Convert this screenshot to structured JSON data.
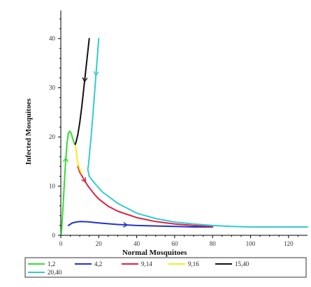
{
  "chart_data": {
    "type": "line",
    "xlabel": "Normal Mosquitoes",
    "ylabel": "Infected Mosquitoes",
    "xlim": [
      0,
      130
    ],
    "ylim": [
      0,
      45
    ],
    "x_ticks": [
      0,
      20,
      40,
      60,
      80,
      100,
      120
    ],
    "y_ticks": [
      0,
      10,
      20,
      30,
      40
    ],
    "grid": false,
    "legend_position": "bottom",
    "series": [
      {
        "name": "1,2",
        "color": "#33dd33",
        "x": [
          0.3,
          1.2,
          2.2,
          3.2,
          4.0,
          4.8,
          5.6,
          6.3,
          7.0,
          7.6
        ],
        "y": [
          0.3,
          6.0,
          13.0,
          18.5,
          20.8,
          21.2,
          20.6,
          19.6,
          18.8,
          18.5
        ]
      },
      {
        "name": "4,2",
        "color": "#2233cc",
        "x": [
          4,
          6,
          8,
          10,
          14,
          18,
          22,
          30,
          40,
          50,
          60,
          70,
          80
        ],
        "y": [
          2.0,
          2.5,
          2.7,
          2.8,
          2.75,
          2.6,
          2.45,
          2.2,
          2.0,
          1.9,
          1.8,
          1.7,
          1.7
        ]
      },
      {
        "name": "9,14",
        "color": "#dd2244",
        "x": [
          9.0,
          10,
          12,
          14,
          16,
          18,
          20,
          25,
          30,
          40,
          50,
          60,
          70,
          80
        ],
        "y": [
          14.0,
          12.8,
          11.5,
          10.2,
          9.2,
          8.2,
          7.4,
          5.9,
          4.9,
          3.6,
          2.8,
          2.3,
          2.0,
          1.8
        ]
      },
      {
        "name": "9,16",
        "color": "#eeee22",
        "x": [
          7.6,
          8.0,
          8.5,
          9.0,
          9.5,
          10.0,
          11.0
        ],
        "y": [
          18.5,
          17.5,
          16.0,
          14.8,
          14.0,
          13.4,
          12.5
        ]
      },
      {
        "name": "15,40",
        "color": "#111111",
        "x": [
          15.0,
          14.0,
          13.0,
          12.0,
          11.0,
          10.0,
          9.0,
          8.0,
          7.6
        ],
        "y": [
          40.0,
          36.5,
          33.0,
          29.5,
          26.0,
          23.0,
          20.5,
          18.9,
          18.5
        ]
      },
      {
        "name": "20,40",
        "color": "#33cccc",
        "x": [
          20.0,
          19.0,
          18.0,
          17.0,
          16.0,
          15.0,
          14.5,
          14.2,
          15,
          18,
          22,
          30,
          40,
          50,
          60,
          70,
          80,
          90,
          100,
          110,
          120,
          130
        ],
        "y": [
          40.0,
          35.0,
          30.0,
          25.0,
          20.0,
          16.0,
          14.0,
          13.5,
          12.0,
          10.5,
          8.8,
          6.5,
          4.5,
          3.4,
          2.7,
          2.3,
          2.0,
          1.8,
          1.7,
          1.7,
          1.7,
          1.7
        ]
      }
    ]
  }
}
